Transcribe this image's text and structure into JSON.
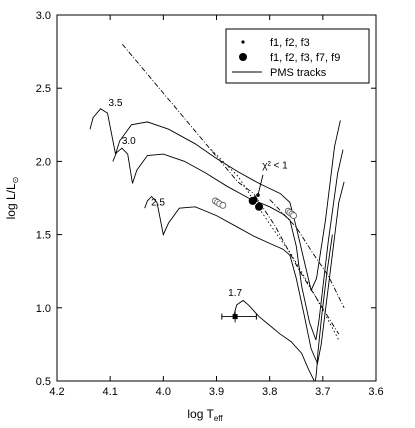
{
  "chart_data": {
    "type": "line",
    "xlabel": "log T",
    "xlabel_sub": "eff",
    "ylabel": "log L/L",
    "ylabel_sub": "⊙",
    "xlim": [
      4.2,
      3.6
    ],
    "ylim": [
      0.5,
      3.0
    ],
    "x_ticks": [
      "4.2",
      "4.1",
      "4.0",
      "3.9",
      "3.8",
      "3.7",
      "3.6"
    ],
    "y_ticks": [
      "0.5",
      "1.0",
      "1.5",
      "2.0",
      "2.5",
      "3.0"
    ],
    "grid": false,
    "legend": {
      "placement": "top-right",
      "entries": [
        {
          "label": "f1, f2, f3",
          "marker": "small-dot"
        },
        {
          "label": "f1, f2, f3, f7, f9",
          "marker": "large-dot"
        },
        {
          "label": "PMS  tracks",
          "marker": "line"
        }
      ]
    },
    "annotations": [
      {
        "text": "3.5",
        "x": 4.09,
        "y": 2.38
      },
      {
        "text": "3.0",
        "x": 4.065,
        "y": 2.12
      },
      {
        "text": "2.5",
        "x": 4.01,
        "y": 1.7
      },
      {
        "text": "1.7",
        "x": 3.865,
        "y": 1.08
      },
      {
        "text": "χ² < 1",
        "x": 3.79,
        "y": 1.95
      }
    ],
    "series": [
      {
        "name": "3.5",
        "style": "solid",
        "points": [
          [
            4.138,
            2.22
          ],
          [
            4.132,
            2.3
          ],
          [
            4.118,
            2.36
          ],
          [
            4.105,
            2.33
          ],
          [
            4.09,
            2.05
          ],
          [
            4.082,
            2.14
          ],
          [
            4.06,
            2.25
          ],
          [
            4.03,
            2.27
          ],
          [
            3.99,
            2.22
          ],
          [
            3.94,
            2.12
          ],
          [
            3.9,
            2.02
          ],
          [
            3.86,
            1.93
          ],
          [
            3.82,
            1.85
          ],
          [
            3.78,
            1.78
          ],
          [
            3.762,
            1.72
          ],
          [
            3.75,
            1.55
          ],
          [
            3.735,
            1.32
          ],
          [
            3.722,
            1.12
          ],
          [
            3.712,
            1.2
          ],
          [
            3.695,
            1.6
          ],
          [
            3.678,
            2.1
          ],
          [
            3.667,
            2.28
          ]
        ]
      },
      {
        "name": "3.0",
        "style": "solid",
        "points": [
          [
            4.095,
            2.0
          ],
          [
            4.088,
            2.06
          ],
          [
            4.078,
            2.09
          ],
          [
            4.067,
            2.05
          ],
          [
            4.058,
            1.85
          ],
          [
            4.05,
            1.94
          ],
          [
            4.03,
            2.04
          ],
          [
            4.0,
            2.05
          ],
          [
            3.96,
            2.0
          ],
          [
            3.92,
            1.92
          ],
          [
            3.88,
            1.83
          ],
          [
            3.84,
            1.75
          ],
          [
            3.8,
            1.69
          ],
          [
            3.775,
            1.64
          ],
          [
            3.762,
            1.6
          ],
          [
            3.75,
            1.42
          ],
          [
            3.74,
            1.15
          ],
          [
            3.725,
            0.9
          ],
          [
            3.713,
            0.78
          ],
          [
            3.707,
            0.92
          ],
          [
            3.69,
            1.45
          ],
          [
            3.672,
            1.92
          ],
          [
            3.662,
            2.08
          ]
        ]
      },
      {
        "name": "2.5",
        "style": "solid",
        "points": [
          [
            4.035,
            1.68
          ],
          [
            4.03,
            1.73
          ],
          [
            4.022,
            1.76
          ],
          [
            4.012,
            1.72
          ],
          [
            4.0,
            1.5
          ],
          [
            3.99,
            1.58
          ],
          [
            3.97,
            1.68
          ],
          [
            3.94,
            1.69
          ],
          [
            3.9,
            1.63
          ],
          [
            3.86,
            1.55
          ],
          [
            3.83,
            1.49
          ],
          [
            3.8,
            1.44
          ],
          [
            3.775,
            1.4
          ],
          [
            3.762,
            1.36
          ],
          [
            3.75,
            1.2
          ],
          [
            3.735,
            0.95
          ],
          [
            3.722,
            0.72
          ],
          [
            3.71,
            0.62
          ],
          [
            3.703,
            0.75
          ],
          [
            3.686,
            1.25
          ],
          [
            3.67,
            1.72
          ],
          [
            3.66,
            1.86
          ]
        ]
      },
      {
        "name": "1.7",
        "style": "solid",
        "points": [
          [
            3.868,
            0.94
          ],
          [
            3.862,
            1.02
          ],
          [
            3.85,
            1.05
          ],
          [
            3.84,
            1.02
          ],
          [
            3.83,
            0.98
          ],
          [
            3.82,
            0.94
          ],
          [
            3.8,
            0.88
          ],
          [
            3.78,
            0.82
          ],
          [
            3.76,
            0.77
          ],
          [
            3.74,
            0.69
          ],
          [
            3.727,
            0.58
          ],
          [
            3.716,
            0.5
          ],
          [
            3.714,
            0.5
          ],
          [
            3.712,
            0.56
          ],
          [
            3.709,
            0.7
          ],
          [
            3.702,
            0.95
          ],
          [
            3.692,
            1.25
          ],
          [
            3.682,
            1.5
          ]
        ]
      },
      {
        "name": "diagonal-1",
        "style": "dashdot",
        "points": [
          [
            4.077,
            2.8
          ],
          [
            3.86,
            1.86
          ],
          [
            3.83,
            1.78
          ],
          [
            3.79,
            1.56
          ],
          [
            3.745,
            1.26
          ],
          [
            3.67,
            0.82
          ]
        ]
      },
      {
        "name": "diagonal-2",
        "style": "dotted",
        "points": [
          [
            3.91,
            2.08
          ],
          [
            3.86,
            1.9
          ],
          [
            3.82,
            1.68
          ],
          [
            3.79,
            1.52
          ],
          [
            3.76,
            1.37
          ],
          [
            3.72,
            1.12
          ],
          [
            3.67,
            0.78
          ]
        ]
      },
      {
        "name": "diagonal-3",
        "style": "dashdot",
        "points": [
          [
            3.8,
            1.74
          ],
          [
            3.75,
            1.55
          ],
          [
            3.72,
            1.38
          ],
          [
            3.69,
            1.22
          ],
          [
            3.66,
            1.0
          ]
        ]
      }
    ],
    "points_small": [
      [
        3.828,
        1.75
      ],
      [
        3.822,
        1.77
      ],
      [
        3.826,
        1.74
      ]
    ],
    "points_large": [
      [
        3.832,
        1.73
      ],
      [
        3.82,
        1.69
      ]
    ],
    "open_circles": [
      [
        3.902,
        1.73
      ],
      [
        3.898,
        1.72
      ],
      [
        3.894,
        1.71
      ],
      [
        3.888,
        1.7
      ],
      [
        3.765,
        1.66
      ],
      [
        3.762,
        1.65
      ],
      [
        3.758,
        1.64
      ],
      [
        3.755,
        1.63
      ]
    ],
    "error_point": {
      "x": 3.865,
      "y": 0.94,
      "xerr": [
        3.89,
        3.825
      ],
      "yerr": [
        0.9,
        0.98
      ]
    }
  }
}
